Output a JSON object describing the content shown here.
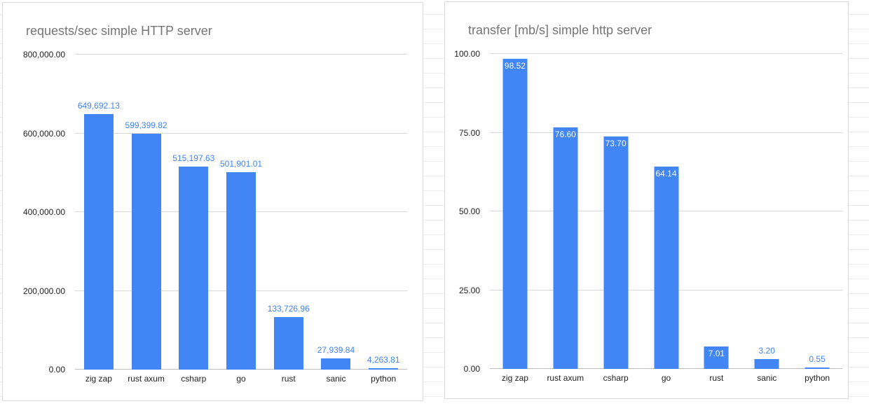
{
  "colors": {
    "bar": "#4285f4",
    "data_label_blue": "#4285f4",
    "data_label_white": "#ffffff",
    "title_text": "#757575",
    "axis_text": "#222222",
    "gridline": "#d9d9d9",
    "panel_border": "#d9d9d9",
    "sheet_line": "#e9ebee"
  },
  "chart_data": [
    {
      "type": "bar",
      "title": "requests/sec simple HTTP server",
      "categories": [
        "zig zap",
        "rust axum",
        "csharp",
        "go",
        "rust",
        "sanic",
        "python"
      ],
      "values": [
        649692.13,
        599399.82,
        515197.63,
        501901.01,
        133726.96,
        27939.84,
        4263.81
      ],
      "data_labels": [
        "649,692.13",
        "599,399.82",
        "515,197.63",
        "501,901.01",
        "133,726.96",
        "27,939.84",
        "4,263.81"
      ],
      "label_positions": [
        "above",
        "above",
        "above",
        "above",
        "above",
        "above",
        "above"
      ],
      "ytick_labels": [
        "0.00",
        "200,000.00",
        "400,000.00",
        "600,000.00",
        "800,000.00"
      ],
      "ylim": [
        0,
        800000
      ],
      "xlabel": "",
      "ylabel": "",
      "grid": "horizontal",
      "legend": "none"
    },
    {
      "type": "bar",
      "title": "transfer [mb/s] simple http server",
      "categories": [
        "zig zap",
        "rust axum",
        "csharp",
        "go",
        "rust",
        "sanic",
        "python"
      ],
      "values": [
        98.52,
        76.6,
        73.7,
        64.14,
        7.01,
        3.2,
        0.55
      ],
      "data_labels": [
        "98.52",
        "76.60",
        "73.70",
        "64.14",
        "7.01",
        "3.20",
        "0.55"
      ],
      "label_positions": [
        "inside",
        "inside",
        "inside",
        "inside",
        "inside",
        "above",
        "above"
      ],
      "ytick_labels": [
        "0.00",
        "25.00",
        "50.00",
        "75.00",
        "100.00"
      ],
      "ylim": [
        0,
        100
      ],
      "xlabel": "",
      "ylabel": "",
      "grid": "horizontal",
      "legend": "none"
    }
  ]
}
